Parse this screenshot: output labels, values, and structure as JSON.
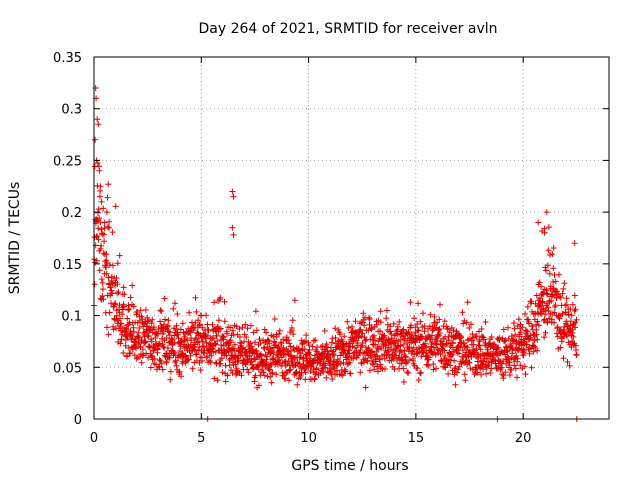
{
  "chart_data": {
    "type": "scatter",
    "title": "Day 264 of 2021, SRMTID for receiver avln",
    "xlabel": "GPS time / hours",
    "ylabel": "SRMTID / TECUs",
    "xlim": [
      0,
      24
    ],
    "ylim": [
      0,
      0.35
    ],
    "xticks": [
      0,
      5,
      10,
      15,
      20
    ],
    "xtick_labels": [
      "0",
      "5",
      "10",
      "15",
      "20"
    ],
    "yticks": [
      0,
      0.05,
      0.1,
      0.15,
      0.2,
      0.25,
      0.3,
      0.35
    ],
    "ytick_labels": [
      "0",
      "0.05",
      "0.1",
      "0.15",
      "0.2",
      "0.25",
      "0.3",
      "0.35"
    ],
    "grid": true,
    "marker": "+",
    "color": "#e00000",
    "series": [
      {
        "name": "SRMTID",
        "trend": [
          [
            0.0,
            0.14
          ],
          [
            0.1,
            0.17
          ],
          [
            0.2,
            0.2
          ],
          [
            0.4,
            0.16
          ],
          [
            0.6,
            0.14
          ],
          [
            0.8,
            0.12
          ],
          [
            1.0,
            0.11
          ],
          [
            1.5,
            0.09
          ],
          [
            2.0,
            0.075
          ],
          [
            2.5,
            0.08
          ],
          [
            3.0,
            0.075
          ],
          [
            3.5,
            0.07
          ],
          [
            4.0,
            0.07
          ],
          [
            5.0,
            0.075
          ],
          [
            6.0,
            0.07
          ],
          [
            7.0,
            0.06
          ],
          [
            8.0,
            0.06
          ],
          [
            9.0,
            0.065
          ],
          [
            10.0,
            0.055
          ],
          [
            11.0,
            0.055
          ],
          [
            12.0,
            0.07
          ],
          [
            13.0,
            0.075
          ],
          [
            14.0,
            0.07
          ],
          [
            15.0,
            0.07
          ],
          [
            16.0,
            0.075
          ],
          [
            17.0,
            0.065
          ],
          [
            18.0,
            0.065
          ],
          [
            19.0,
            0.06
          ],
          [
            20.0,
            0.07
          ],
          [
            20.5,
            0.09
          ],
          [
            21.0,
            0.12
          ],
          [
            21.5,
            0.11
          ],
          [
            22.0,
            0.09
          ],
          [
            22.5,
            0.08
          ]
        ],
        "outliers": [
          [
            0.05,
            0.27
          ],
          [
            0.08,
            0.32
          ],
          [
            0.1,
            0.31
          ],
          [
            0.12,
            0.25
          ],
          [
            0.15,
            0.29
          ],
          [
            0.2,
            0.285
          ],
          [
            0.25,
            0.24
          ],
          [
            0.3,
            0.225
          ],
          [
            0.35,
            0.21
          ],
          [
            0.5,
            0.19
          ],
          [
            0.6,
            0.2
          ],
          [
            0.7,
            0.185
          ],
          [
            6.45,
            0.22
          ],
          [
            6.5,
            0.215
          ],
          [
            6.45,
            0.185
          ],
          [
            6.5,
            0.178
          ],
          [
            21.1,
            0.2
          ],
          [
            20.7,
            0.19
          ],
          [
            21.0,
            0.18
          ],
          [
            22.4,
            0.17
          ]
        ],
        "zero_points": [
          [
            5.3,
            0.0
          ],
          [
            18.8,
            0.0
          ],
          [
            22.5,
            0.0
          ]
        ]
      }
    ]
  }
}
